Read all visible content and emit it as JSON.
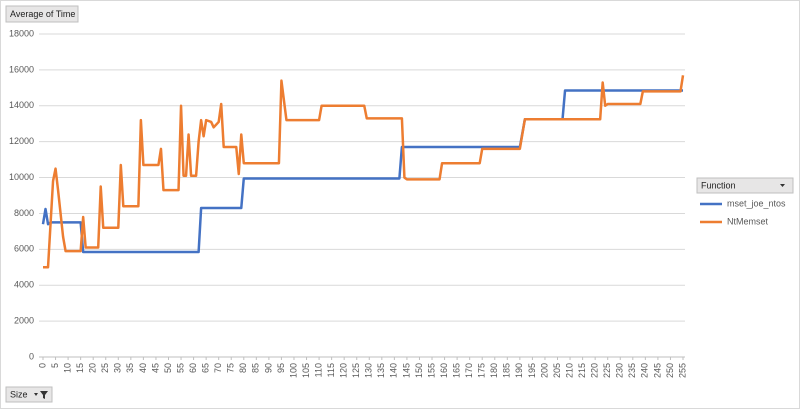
{
  "chart_data": {
    "type": "line",
    "value_field_button": "Average of Time",
    "legend_title": "Function",
    "xlabel": "Size",
    "xlim": [
      0,
      255
    ],
    "xticks": [
      0,
      5,
      10,
      15,
      20,
      25,
      30,
      35,
      40,
      45,
      50,
      55,
      60,
      65,
      70,
      75,
      80,
      85,
      90,
      95,
      100,
      105,
      110,
      115,
      120,
      125,
      130,
      135,
      140,
      145,
      150,
      155,
      160,
      165,
      170,
      175,
      180,
      185,
      190,
      195,
      200,
      205,
      210,
      215,
      220,
      225,
      230,
      235,
      240,
      245,
      250,
      255
    ],
    "ylim": [
      0,
      18000
    ],
    "yticks": [
      0,
      2000,
      4000,
      6000,
      8000,
      10000,
      12000,
      14000,
      16000,
      18000
    ],
    "grid": true,
    "legend": "right",
    "series": [
      {
        "name": "mset_joe_ntos",
        "color": "#4472c4",
        "x": [
          0,
          1,
          2,
          3,
          15,
          16,
          62,
          63,
          79,
          80,
          142,
          143,
          190,
          192,
          207,
          208,
          255
        ],
        "values": [
          7400,
          8250,
          7400,
          7500,
          7500,
          5850,
          5850,
          8300,
          8300,
          9950,
          9950,
          11700,
          11700,
          13250,
          13250,
          14850,
          14850
        ]
      },
      {
        "name": "NtMemset",
        "color": "#ed7d31",
        "x": [
          0,
          2,
          4,
          5,
          6,
          8,
          9,
          15,
          16,
          17,
          22,
          23,
          24,
          30,
          31,
          32,
          38,
          39,
          40,
          46,
          47,
          48,
          54,
          55,
          56,
          57,
          58,
          59,
          61,
          62,
          63,
          64,
          65,
          67,
          68,
          70,
          71,
          72,
          77,
          78,
          79,
          80,
          94,
          95,
          97,
          110,
          111,
          128,
          129,
          143,
          144,
          145,
          158,
          159,
          174,
          175,
          190,
          192,
          222,
          223,
          224,
          225,
          238,
          239,
          254,
          255
        ],
        "values": [
          5000,
          5000,
          9800,
          10500,
          9300,
          6700,
          5900,
          5900,
          7800,
          6100,
          6100,
          9500,
          7200,
          7200,
          10700,
          8400,
          8400,
          13200,
          10700,
          10700,
          11600,
          9300,
          9300,
          14000,
          10100,
          10100,
          12400,
          10100,
          10100,
          12000,
          13200,
          12300,
          13200,
          13100,
          12800,
          13100,
          14100,
          11700,
          11700,
          10200,
          12400,
          10800,
          10800,
          15400,
          13200,
          13200,
          14000,
          14000,
          13300,
          13300,
          10000,
          9900,
          9900,
          10800,
          10800,
          11600,
          11600,
          13250,
          13250,
          15300,
          14000,
          14100,
          14100,
          14800,
          14800,
          15700
        ]
      }
    ]
  }
}
